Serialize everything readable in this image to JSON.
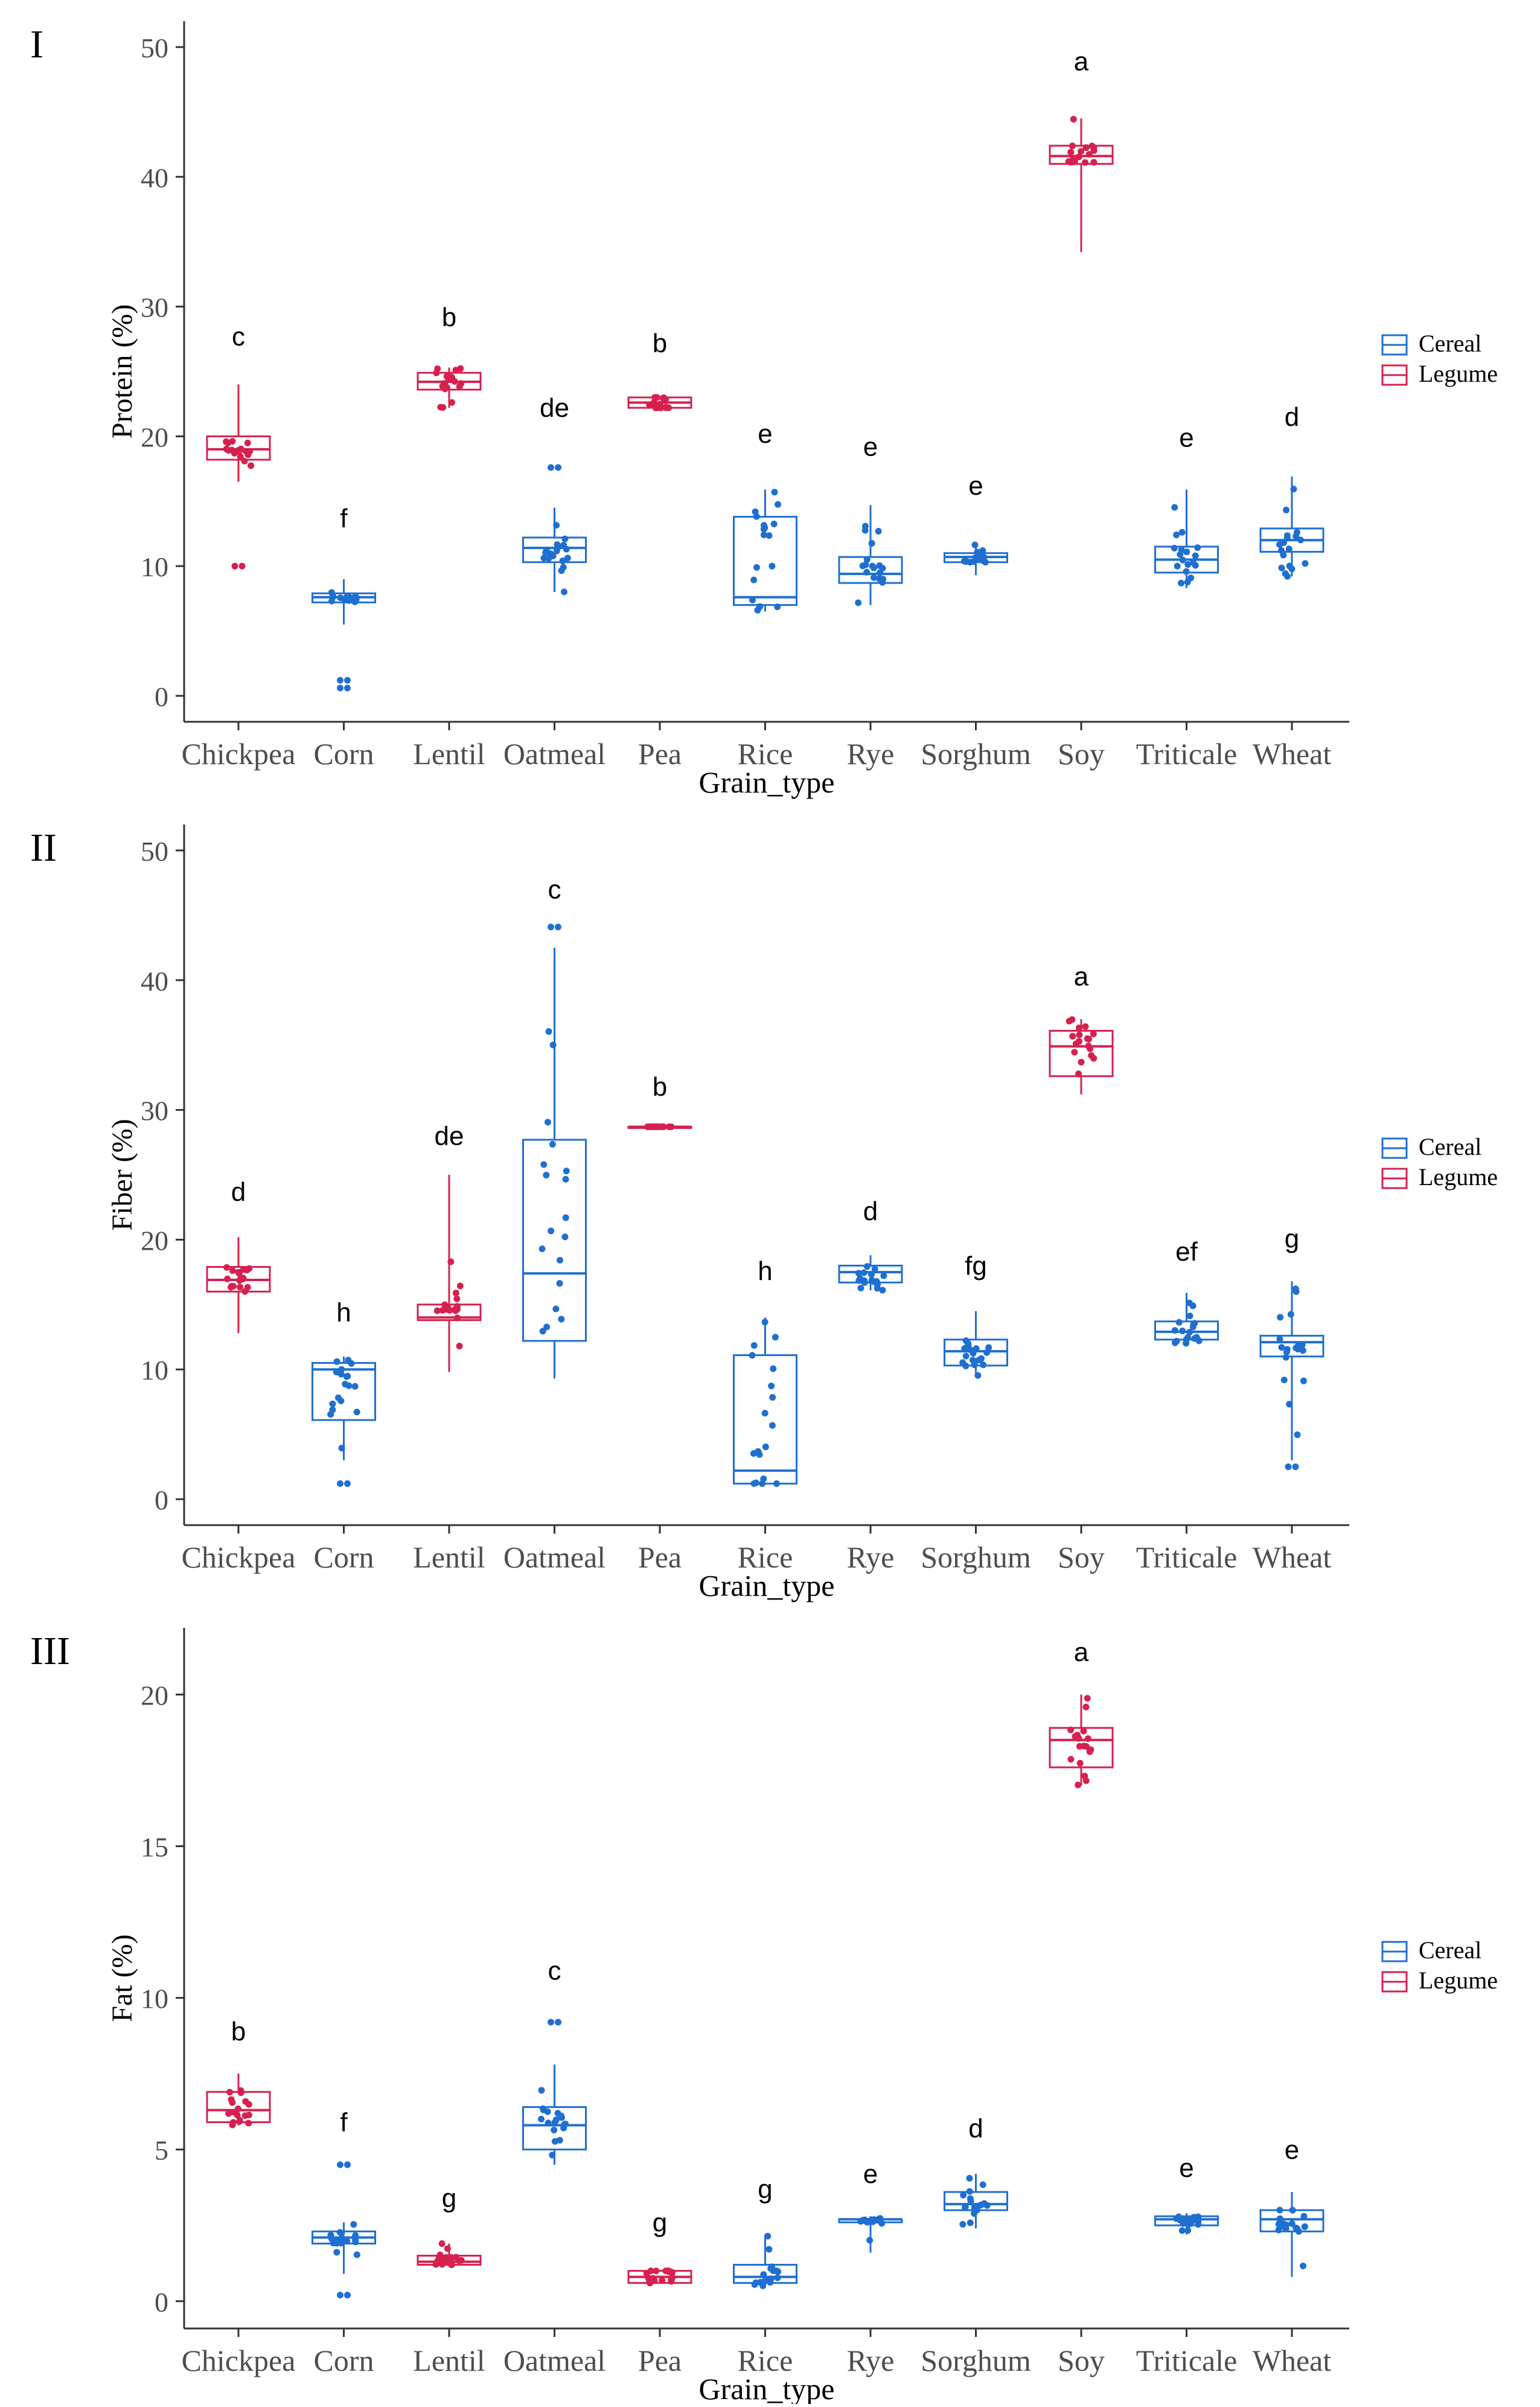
{
  "colors": {
    "cereal": "#1f6fd1",
    "legume": "#d6204f",
    "axis": "#333333"
  },
  "chart_data": [
    {
      "type": "box",
      "panel_label": "I",
      "ylabel": "Protein (%)",
      "xlabel": "Grain_type",
      "ylim": [
        -2,
        52
      ],
      "yticks": [
        0,
        10,
        20,
        30,
        40,
        50
      ],
      "legend": {
        "position": "right",
        "entries": [
          "Cereal",
          "Legume"
        ]
      },
      "categories": [
        "Chickpea",
        "Corn",
        "Lentil",
        "Oatmeal",
        "Pea",
        "Rice",
        "Rye",
        "Sorghum",
        "Soy",
        "Triticale",
        "Wheat"
      ],
      "groups": [
        {
          "category": "Chickpea",
          "group": "Legume",
          "min": 16.5,
          "q1": 18.2,
          "median": 19.0,
          "q3": 20.0,
          "max": 24.0,
          "letter": "c",
          "letter_y": 27,
          "outliers": [
            10.0
          ]
        },
        {
          "category": "Corn",
          "group": "Cereal",
          "min": 5.5,
          "q1": 7.2,
          "median": 7.6,
          "q3": 7.9,
          "max": 9.0,
          "letter": "f",
          "letter_y": 13,
          "outliers": [
            1.2,
            0.6
          ]
        },
        {
          "category": "Lentil",
          "group": "Legume",
          "min": 22.2,
          "q1": 23.6,
          "median": 24.2,
          "q3": 24.9,
          "max": 25.3,
          "letter": "b",
          "letter_y": 28.5,
          "outliers": []
        },
        {
          "category": "Oatmeal",
          "group": "Cereal",
          "min": 8.0,
          "q1": 10.3,
          "median": 11.4,
          "q3": 12.2,
          "max": 14.5,
          "letter": "de",
          "letter_y": 21.5,
          "outliers": [
            17.6
          ]
        },
        {
          "category": "Pea",
          "group": "Legume",
          "min": 22.2,
          "q1": 22.2,
          "median": 22.6,
          "q3": 23.0,
          "max": 23.0,
          "letter": "b",
          "letter_y": 26.5,
          "outliers": []
        },
        {
          "category": "Rice",
          "group": "Cereal",
          "min": 6.5,
          "q1": 7.0,
          "median": 7.6,
          "q3": 13.8,
          "max": 15.9,
          "letter": "e",
          "letter_y": 19.5,
          "outliers": []
        },
        {
          "category": "Rye",
          "group": "Cereal",
          "min": 7.0,
          "q1": 8.7,
          "median": 9.4,
          "q3": 10.7,
          "max": 14.7,
          "letter": "e",
          "letter_y": 18.5,
          "outliers": []
        },
        {
          "category": "Sorghum",
          "group": "Cereal",
          "min": 9.3,
          "q1": 10.3,
          "median": 10.7,
          "q3": 11.0,
          "max": 11.7,
          "letter": "e",
          "letter_y": 15.5,
          "outliers": []
        },
        {
          "category": "Soy",
          "group": "Legume",
          "min": 34.2,
          "q1": 41.0,
          "median": 41.6,
          "q3": 42.4,
          "max": 44.5,
          "letter": "a",
          "letter_y": 48.2,
          "outliers": []
        },
        {
          "category": "Triticale",
          "group": "Cereal",
          "min": 8.3,
          "q1": 9.5,
          "median": 10.5,
          "q3": 11.5,
          "max": 15.9,
          "letter": "e",
          "letter_y": 19.2,
          "outliers": []
        },
        {
          "category": "Wheat",
          "group": "Cereal",
          "min": 9.2,
          "q1": 11.1,
          "median": 12.0,
          "q3": 12.9,
          "max": 16.9,
          "letter": "d",
          "letter_y": 20.8,
          "outliers": []
        }
      ]
    },
    {
      "type": "box",
      "panel_label": "II",
      "ylabel": "Fiber (%)",
      "xlabel": "Grain_type",
      "ylim": [
        -2,
        52
      ],
      "yticks": [
        0,
        10,
        20,
        30,
        40,
        50
      ],
      "legend": {
        "position": "right",
        "entries": [
          "Cereal",
          "Legume"
        ]
      },
      "categories": [
        "Chickpea",
        "Corn",
        "Lentil",
        "Oatmeal",
        "Pea",
        "Rice",
        "Rye",
        "Sorghum",
        "Soy",
        "Triticale",
        "Wheat"
      ],
      "groups": [
        {
          "category": "Chickpea",
          "group": "Legume",
          "min": 12.8,
          "q1": 16.0,
          "median": 16.9,
          "q3": 17.9,
          "max": 20.2,
          "letter": "d",
          "letter_y": 23,
          "outliers": []
        },
        {
          "category": "Corn",
          "group": "Cereal",
          "min": 3.0,
          "q1": 6.1,
          "median": 10.0,
          "q3": 10.5,
          "max": 11.0,
          "letter": "h",
          "letter_y": 13.7,
          "outliers": [
            1.2
          ]
        },
        {
          "category": "Lentil",
          "group": "Legume",
          "min": 9.8,
          "q1": 13.8,
          "median": 14.0,
          "q3": 15.0,
          "max": 25.0,
          "letter": "de",
          "letter_y": 27.3,
          "outliers": []
        },
        {
          "category": "Oatmeal",
          "group": "Cereal",
          "min": 9.3,
          "q1": 12.2,
          "median": 17.4,
          "q3": 27.7,
          "max": 42.5,
          "letter": "c",
          "letter_y": 46.3,
          "outliers": [
            44.1
          ]
        },
        {
          "category": "Pea",
          "group": "Legume",
          "min": 28.7,
          "q1": 28.7,
          "median": 28.7,
          "q3": 28.7,
          "max": 28.7,
          "letter": "b",
          "letter_y": 31.1,
          "outliers": []
        },
        {
          "category": "Rice",
          "group": "Cereal",
          "min": 1.2,
          "q1": 1.2,
          "median": 2.2,
          "q3": 11.1,
          "max": 14.0,
          "letter": "h",
          "letter_y": 16.9,
          "outliers": []
        },
        {
          "category": "Rye",
          "group": "Cereal",
          "min": 16.1,
          "q1": 16.7,
          "median": 17.5,
          "q3": 18.0,
          "max": 18.8,
          "letter": "d",
          "letter_y": 21.5,
          "outliers": []
        },
        {
          "category": "Sorghum",
          "group": "Cereal",
          "min": 9.4,
          "q1": 10.3,
          "median": 11.4,
          "q3": 12.3,
          "max": 14.5,
          "letter": "fg",
          "letter_y": 17.3,
          "outliers": []
        },
        {
          "category": "Soy",
          "group": "Legume",
          "min": 31.2,
          "q1": 32.6,
          "median": 34.9,
          "q3": 36.1,
          "max": 37.0,
          "letter": "a",
          "letter_y": 39.6,
          "outliers": []
        },
        {
          "category": "Triticale",
          "group": "Cereal",
          "min": 12.0,
          "q1": 12.3,
          "median": 12.9,
          "q3": 13.7,
          "max": 15.9,
          "letter": "ef",
          "letter_y": 18.4,
          "outliers": []
        },
        {
          "category": "Wheat",
          "group": "Cereal",
          "min": 3.0,
          "q1": 11.0,
          "median": 12.1,
          "q3": 12.6,
          "max": 16.8,
          "letter": "g",
          "letter_y": 19.4,
          "outliers": [
            2.5
          ]
        }
      ]
    },
    {
      "type": "box",
      "panel_label": "III",
      "ylabel": "Fat (%)",
      "xlabel": "Grain_type",
      "ylim": [
        -0.9,
        22.2
      ],
      "yticks": [
        0,
        5,
        10,
        15,
        20
      ],
      "legend": {
        "position": "right",
        "entries": [
          "Cereal",
          "Legume"
        ]
      },
      "categories": [
        "Chickpea",
        "Corn",
        "Lentil",
        "Oatmeal",
        "Pea",
        "Rice",
        "Rye",
        "Sorghum",
        "Soy",
        "Triticale",
        "Wheat"
      ],
      "groups": [
        {
          "category": "Chickpea",
          "group": "Legume",
          "min": 5.8,
          "q1": 5.9,
          "median": 6.3,
          "q3": 6.9,
          "max": 7.5,
          "letter": "b",
          "letter_y": 8.6,
          "outliers": []
        },
        {
          "category": "Corn",
          "group": "Cereal",
          "min": 0.9,
          "q1": 1.9,
          "median": 2.1,
          "q3": 2.3,
          "max": 2.6,
          "letter": "f",
          "letter_y": 5.6,
          "outliers": [
            4.5,
            0.2
          ]
        },
        {
          "category": "Lentil",
          "group": "Legume",
          "min": 1.2,
          "q1": 1.2,
          "median": 1.3,
          "q3": 1.5,
          "max": 1.9,
          "letter": "g",
          "letter_y": 3.1,
          "outliers": []
        },
        {
          "category": "Oatmeal",
          "group": "Cereal",
          "min": 4.5,
          "q1": 5.0,
          "median": 5.8,
          "q3": 6.4,
          "max": 7.8,
          "letter": "c",
          "letter_y": 10.6,
          "outliers": [
            9.2
          ]
        },
        {
          "category": "Pea",
          "group": "Legume",
          "min": 0.6,
          "q1": 0.6,
          "median": 0.8,
          "q3": 1.0,
          "max": 1.0,
          "letter": "g",
          "letter_y": 2.3,
          "outliers": []
        },
        {
          "category": "Rice",
          "group": "Cereal",
          "min": 0.5,
          "q1": 0.6,
          "median": 0.8,
          "q3": 1.2,
          "max": 2.2,
          "letter": "g",
          "letter_y": 3.4,
          "outliers": []
        },
        {
          "category": "Rye",
          "group": "Cereal",
          "min": 1.6,
          "q1": 2.6,
          "median": 2.7,
          "q3": 2.7,
          "max": 2.8,
          "letter": "e",
          "letter_y": 3.9,
          "outliers": []
        },
        {
          "category": "Sorghum",
          "group": "Cereal",
          "min": 2.4,
          "q1": 3.0,
          "median": 3.2,
          "q3": 3.6,
          "max": 4.2,
          "letter": "d",
          "letter_y": 5.4,
          "outliers": []
        },
        {
          "category": "Soy",
          "group": "Legume",
          "min": 17.0,
          "q1": 17.6,
          "median": 18.5,
          "q3": 18.9,
          "max": 20.0,
          "letter": "a",
          "letter_y": 21.1,
          "outliers": []
        },
        {
          "category": "Triticale",
          "group": "Cereal",
          "min": 2.2,
          "q1": 2.5,
          "median": 2.7,
          "q3": 2.8,
          "max": 2.9,
          "letter": "e",
          "letter_y": 4.1,
          "outliers": []
        },
        {
          "category": "Wheat",
          "group": "Cereal",
          "min": 0.8,
          "q1": 2.3,
          "median": 2.7,
          "q3": 3.0,
          "max": 3.6,
          "letter": "e",
          "letter_y": 4.7,
          "outliers": []
        }
      ]
    }
  ]
}
